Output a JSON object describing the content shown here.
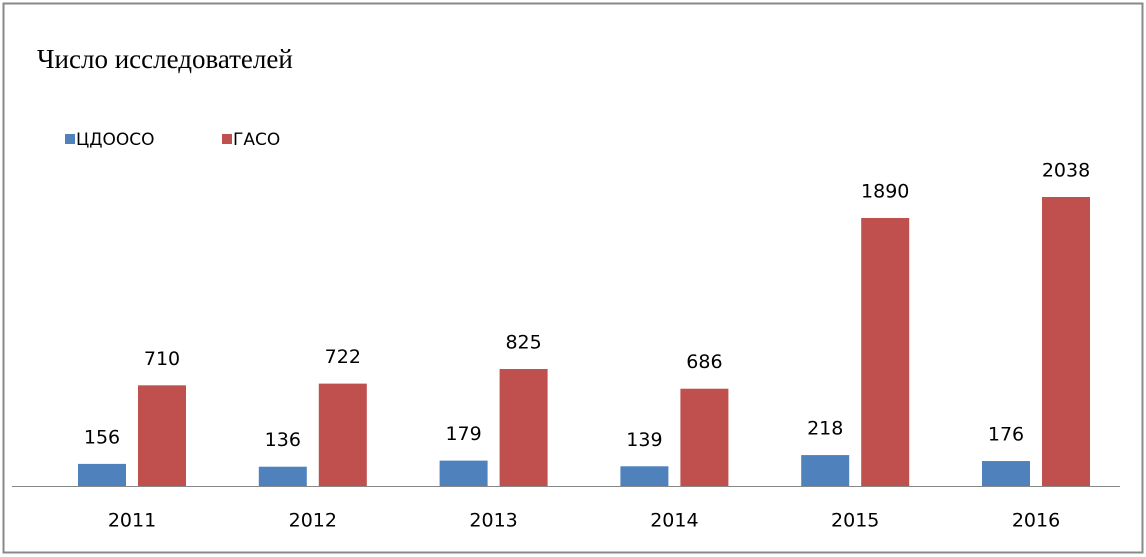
{
  "chart_data": {
    "type": "bar",
    "title": "Число исследователей",
    "categories": [
      "2011",
      "2012",
      "2013",
      "2014",
      "2015",
      "2016"
    ],
    "series": [
      {
        "name": "ЦДООСО",
        "color": "#4f81bd",
        "values": [
          156,
          136,
          179,
          139,
          218,
          176
        ]
      },
      {
        "name": "ГАСО",
        "color": "#c0504d",
        "values": [
          710,
          722,
          825,
          686,
          1890,
          2038
        ]
      }
    ],
    "legend": "top-left"
  }
}
